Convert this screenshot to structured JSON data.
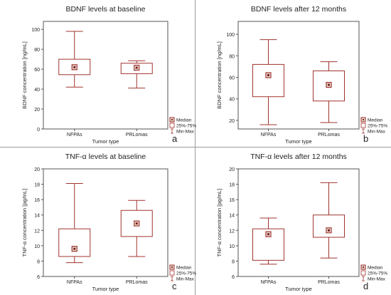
{
  "colors": {
    "box": "#a0342f",
    "whisker": "#a0342f",
    "median_fill": "#e7e1d4",
    "median_center": "#7a1d22",
    "axis": "#555555",
    "separator": "#9a9a9a"
  },
  "legend": {
    "median": "Median",
    "iqr": "25%-75%",
    "range": "Min-Max"
  },
  "chart_data": [
    {
      "id": "a",
      "type": "box",
      "title": "BDNF levels at baseline",
      "xlabel": "Tumor type",
      "ylabel": "BDNF concentration [ng/mL]",
      "ylim": [
        0,
        108
      ],
      "yticks": [
        0,
        20,
        40,
        60,
        80,
        100
      ],
      "categories": [
        "NFPAs",
        "PRLomas"
      ],
      "series": [
        {
          "category": "NFPAs",
          "min": 42,
          "q1": 54.5,
          "median": 62,
          "q3": 70,
          "max": 98
        },
        {
          "category": "PRLomas",
          "min": 41,
          "q1": 55.5,
          "median": 61.5,
          "q3": 66,
          "max": 68.5
        }
      ],
      "panel_label": "a"
    },
    {
      "id": "b",
      "type": "box",
      "title": "BDNF levels after 12 months",
      "xlabel": "Tumor type",
      "ylabel": "BDNF concentration [ng/mL]",
      "ylim": [
        12,
        112
      ],
      "yticks": [
        20,
        40,
        60,
        80,
        100
      ],
      "categories": [
        "NFPAs",
        "PRLomas"
      ],
      "series": [
        {
          "category": "NFPAs",
          "min": 16,
          "q1": 42,
          "median": 62,
          "q3": 72,
          "max": 95
        },
        {
          "category": "PRLomas",
          "min": 18,
          "q1": 38,
          "median": 53,
          "q3": 66,
          "max": 74.5
        }
      ],
      "panel_label": "b"
    },
    {
      "id": "c",
      "type": "box",
      "title": "TNF-α levels at baseline",
      "xlabel": "Tumor type",
      "ylabel": "TNF-α concentration [pg/mL]",
      "ylim": [
        6,
        20
      ],
      "yticks": [
        6,
        8,
        10,
        12,
        14,
        16,
        18,
        20
      ],
      "categories": [
        "NFPAs",
        "PRLomas"
      ],
      "series": [
        {
          "category": "NFPAs",
          "min": 7.8,
          "q1": 8.6,
          "median": 9.6,
          "q3": 12.2,
          "max": 18.1
        },
        {
          "category": "PRLomas",
          "min": 8.6,
          "q1": 11.2,
          "median": 12.9,
          "q3": 14.6,
          "max": 15.9
        }
      ],
      "panel_label": "c"
    },
    {
      "id": "d",
      "type": "box",
      "title": "TNF-α levels after 12 months",
      "xlabel": "Tumor type",
      "ylabel": "TNF-α concentration [pg/mL]",
      "ylim": [
        6,
        20
      ],
      "yticks": [
        6,
        8,
        10,
        12,
        14,
        16,
        18,
        20
      ],
      "categories": [
        "NFPAs",
        "PRLomas"
      ],
      "series": [
        {
          "category": "NFPAs",
          "min": 7.6,
          "q1": 8.1,
          "median": 11.5,
          "q3": 12.2,
          "max": 13.6
        },
        {
          "category": "PRLomas",
          "min": 8.4,
          "q1": 11.1,
          "median": 12.0,
          "q3": 14.0,
          "max": 18.2
        }
      ],
      "panel_label": "d"
    }
  ]
}
